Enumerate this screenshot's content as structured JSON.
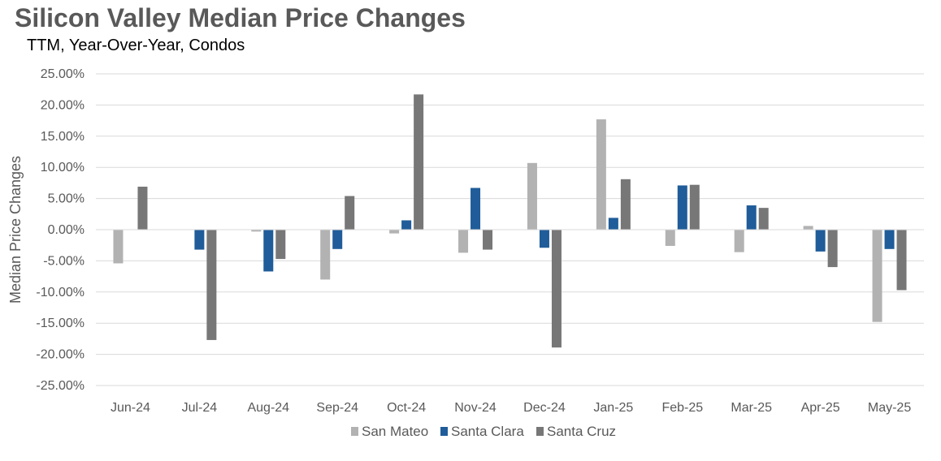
{
  "chart_data": {
    "type": "bar",
    "title": "Silicon Valley Median Price Changes",
    "subtitle": "TTM, Year-Over-Year,  Condos",
    "ylabel": "Median Price Changes",
    "xlabel": "",
    "ylim": [
      -25,
      25
    ],
    "yticks": [
      25,
      20,
      15,
      10,
      5,
      0,
      -5,
      -10,
      -15,
      -20,
      -25
    ],
    "ytick_labels": [
      "25.00%",
      "20.00%",
      "15.00%",
      "10.00%",
      "5.00%",
      "0.00%",
      "-5.00%",
      "-10.00%",
      "-15.00%",
      "-20.00%",
      "-25.00%"
    ],
    "grid": true,
    "legend_position": "bottom",
    "categories": [
      "Jun-24",
      "Jul-24",
      "Aug-24",
      "Sep-24",
      "Oct-24",
      "Nov-24",
      "Dec-24",
      "Jan-25",
      "Feb-25",
      "Mar-25",
      "Apr-25",
      "May-25"
    ],
    "series": [
      {
        "name": "San Mateo",
        "color": "#b2b2b2",
        "values": [
          -5.4,
          0,
          -0.3,
          -8.0,
          -0.6,
          -3.7,
          10.7,
          17.7,
          -2.6,
          -3.6,
          0.6,
          -14.8
        ]
      },
      {
        "name": "Santa Clara",
        "color": "#1f5c99",
        "values": [
          0,
          -3.2,
          -6.7,
          -3.1,
          1.5,
          6.7,
          -2.9,
          1.9,
          7.1,
          3.9,
          -3.5,
          -3.1
        ]
      },
      {
        "name": "Santa Cruz",
        "color": "#777777",
        "values": [
          6.9,
          -17.7,
          -4.7,
          5.4,
          21.7,
          -3.2,
          -18.9,
          8.1,
          7.2,
          3.5,
          -6.0,
          -9.7
        ]
      }
    ]
  }
}
